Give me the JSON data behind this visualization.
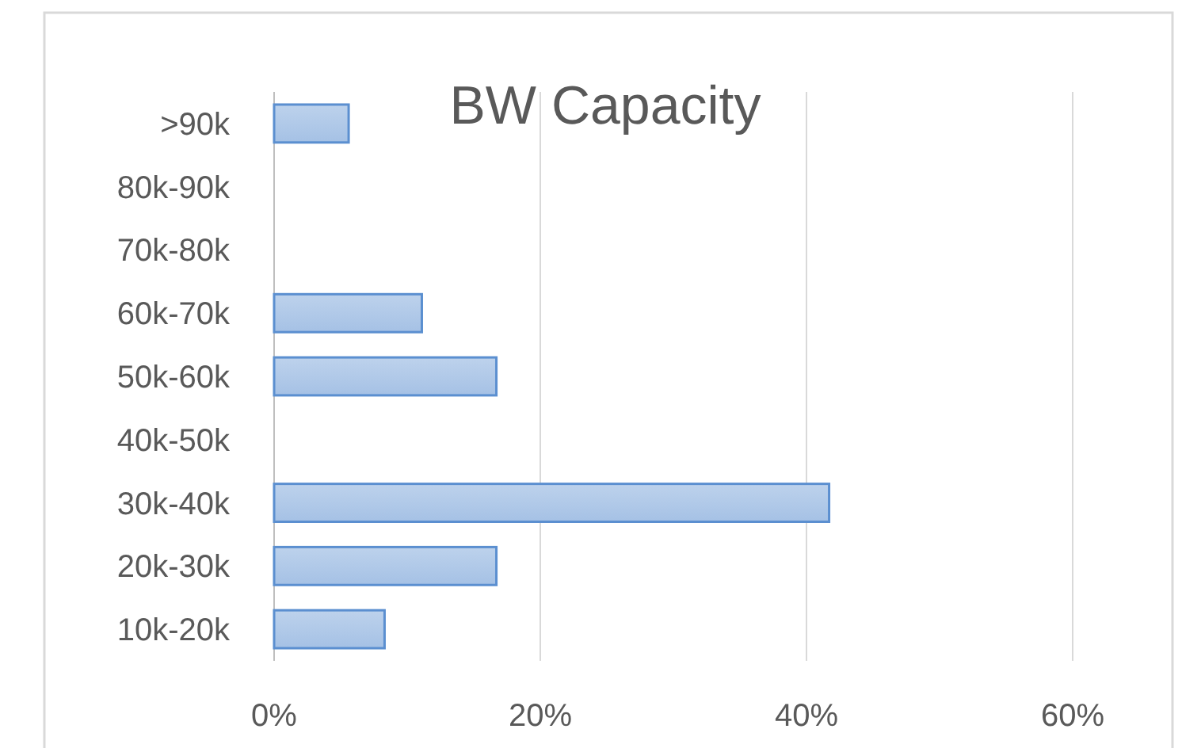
{
  "chart_data": {
    "type": "bar",
    "orientation": "horizontal",
    "title": "BW Capacity",
    "categories": [
      ">90k",
      "80k-90k",
      "70k-80k",
      "60k-70k",
      "50k-60k",
      "40k-50k",
      "30k-40k",
      "20k-30k",
      "10k-20k"
    ],
    "values": [
      5.6,
      0,
      0,
      11.1,
      16.7,
      0,
      41.7,
      16.7,
      8.3
    ],
    "color": "#5b8fd0",
    "xlim": [
      0,
      60
    ],
    "xticks": [
      {
        "value": 0,
        "label": "0%"
      },
      {
        "value": 20,
        "label": "20%"
      },
      {
        "value": 40,
        "label": "40%"
      },
      {
        "value": 60,
        "label": "60%"
      }
    ],
    "grid": "x"
  }
}
